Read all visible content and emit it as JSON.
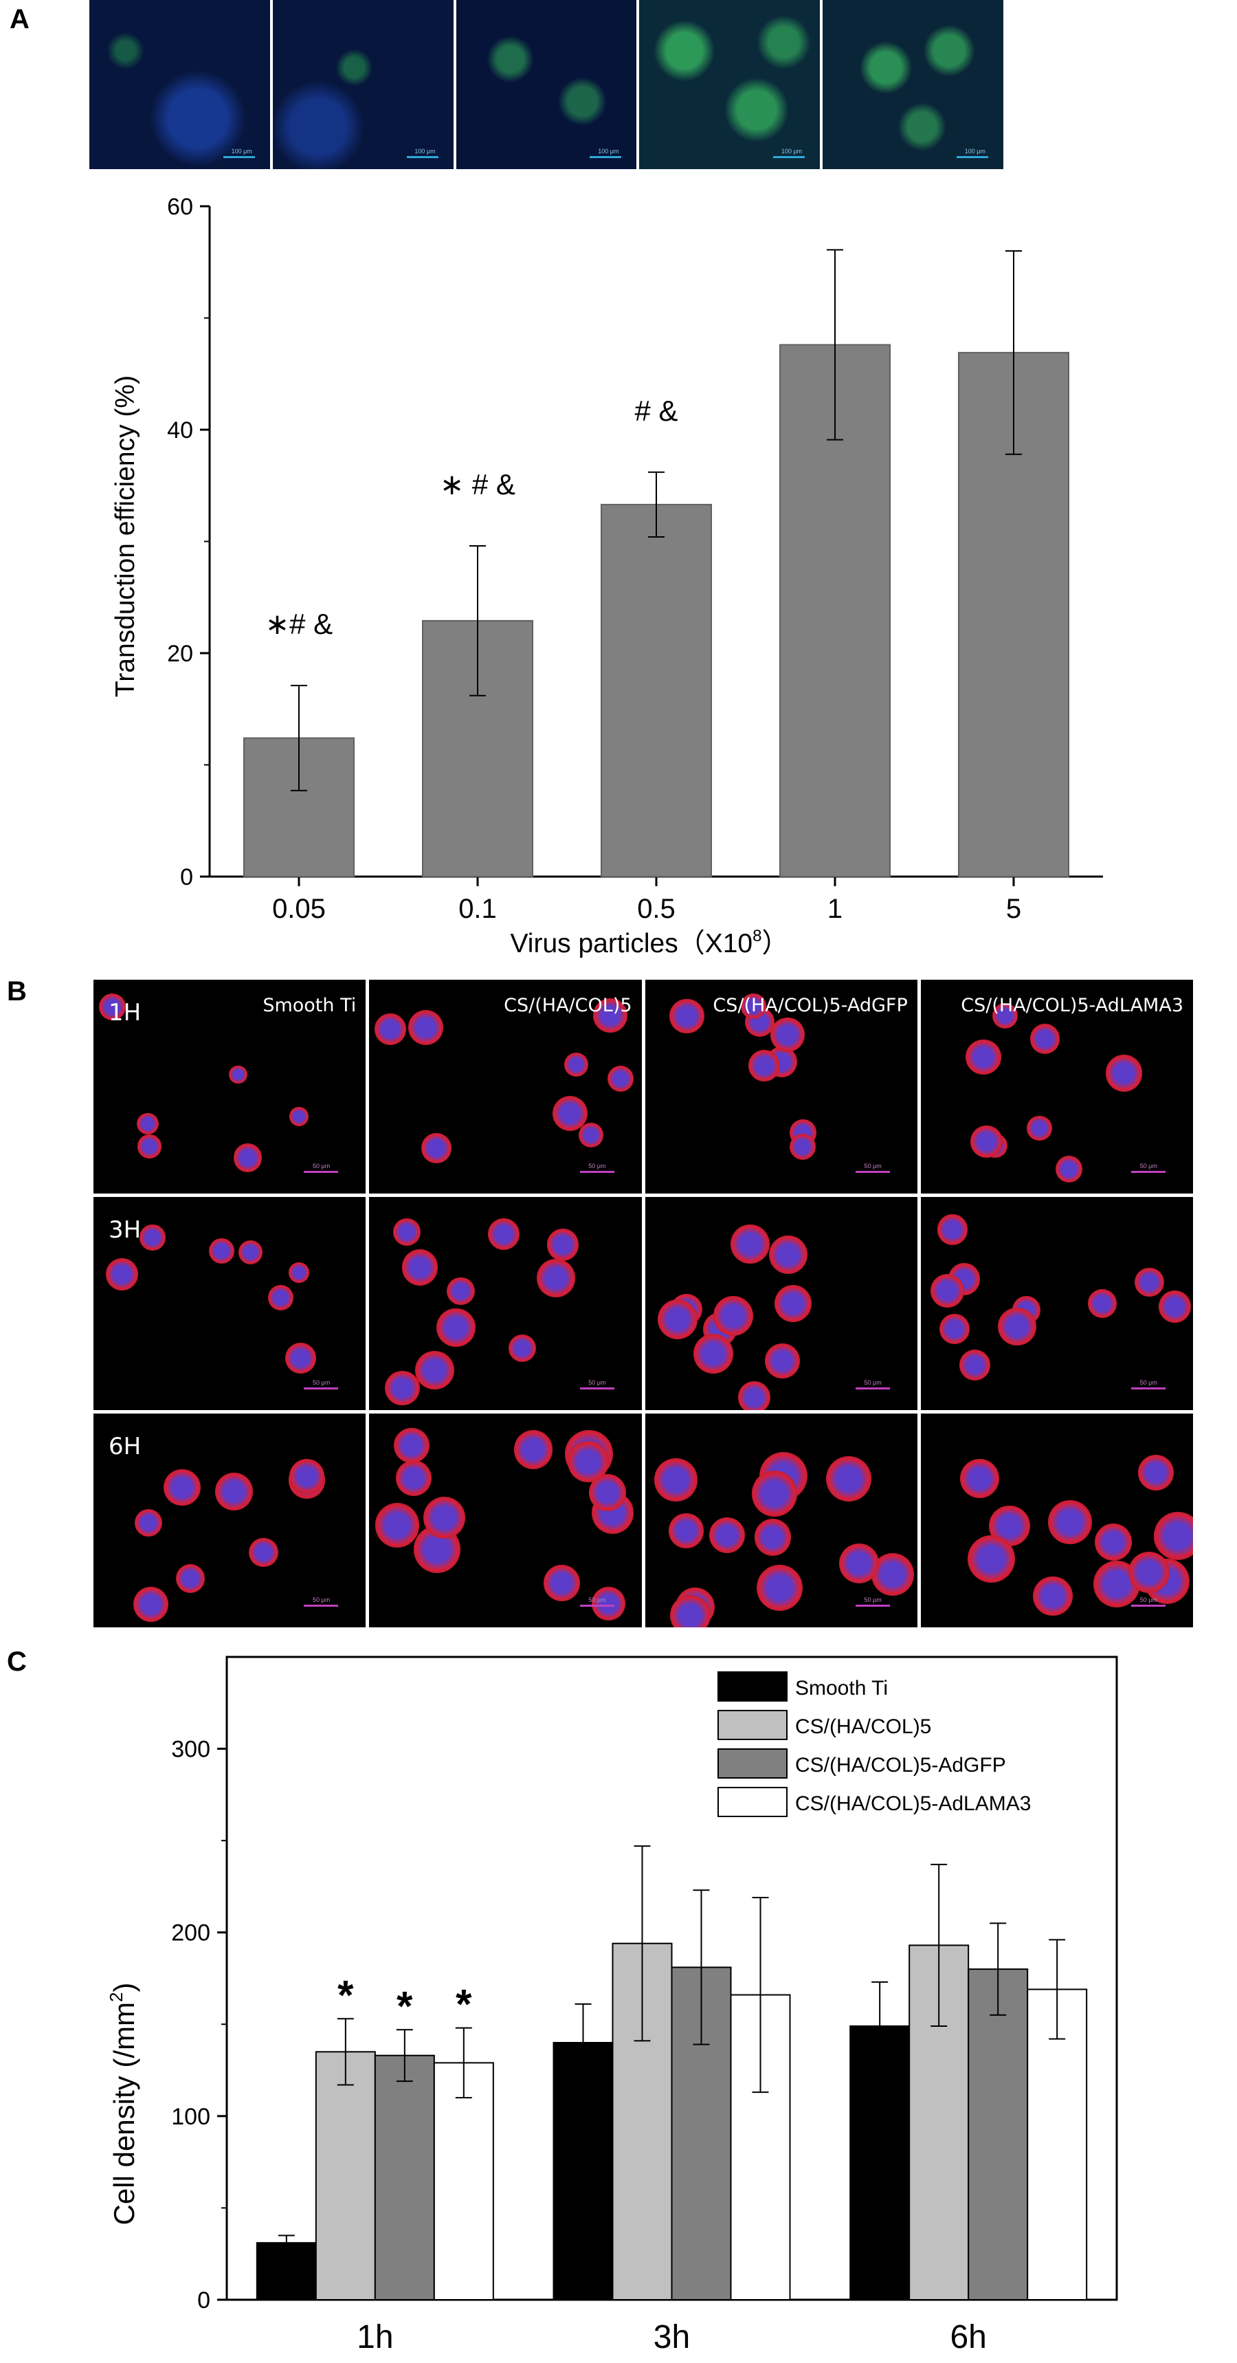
{
  "panels": {
    "a": "A",
    "b": "B",
    "c": "C"
  },
  "micrographs_a": {
    "scale_label": "100 μm",
    "count": 5
  },
  "micrographs_b": {
    "rows": [
      "1H",
      "3H",
      "6H"
    ],
    "columns": [
      "Smooth Ti",
      "CS/(HA/COL)5",
      "CS/(HA/COL)5-AdGFP",
      "CS/(HA/COL)5-AdLAMA3"
    ],
    "scale_label": "50 μm"
  },
  "chart_data": [
    {
      "type": "bar",
      "ylabel": "Transduction efficiency (%)",
      "xlabel": "Virus particles（X10",
      "xlabel_sup": "8",
      "xlabel_end": "）",
      "categories": [
        "0.05",
        "0.1",
        "0.5",
        "1",
        "5"
      ],
      "values": [
        12.4,
        22.9,
        33.3,
        47.6,
        46.9
      ],
      "errors": [
        4.7,
        6.7,
        2.9,
        8.5,
        9.1
      ],
      "annotations": [
        "∗# &",
        "∗ # &",
        "# &",
        "",
        ""
      ],
      "ylim": [
        0,
        60
      ],
      "yticks": [
        0,
        20,
        40,
        60
      ],
      "bar_color": "#808080"
    },
    {
      "type": "bar",
      "ylabel": "Cell density (/mm",
      "ylabel_sup": "2",
      "ylabel_end": ")",
      "categories": [
        "1h",
        "3h",
        "6h"
      ],
      "series": [
        {
          "name": "Smooth Ti",
          "color": "#000000",
          "values": [
            31,
            140,
            149
          ],
          "errors": [
            4,
            21,
            24
          ]
        },
        {
          "name": "CS/(HA/COL)5",
          "color": "#c0c0c0",
          "values": [
            135,
            194,
            193
          ],
          "errors": [
            18,
            53,
            44
          ]
        },
        {
          "name": "CS/(HA/COL)5-AdGFP",
          "color": "#808080",
          "values": [
            133,
            181,
            180
          ],
          "errors": [
            14,
            42,
            25
          ]
        },
        {
          "name": "CS/(HA/COL)5-AdLAMA3",
          "color": "#ffffff",
          "values": [
            129,
            166,
            169
          ],
          "errors": [
            19,
            53,
            27
          ]
        }
      ],
      "annotations_1h": [
        "",
        "*",
        "*",
        "*"
      ],
      "ylim": [
        0,
        350
      ],
      "yticks": [
        0,
        100,
        200,
        300
      ],
      "legend_position": "top-right"
    }
  ]
}
